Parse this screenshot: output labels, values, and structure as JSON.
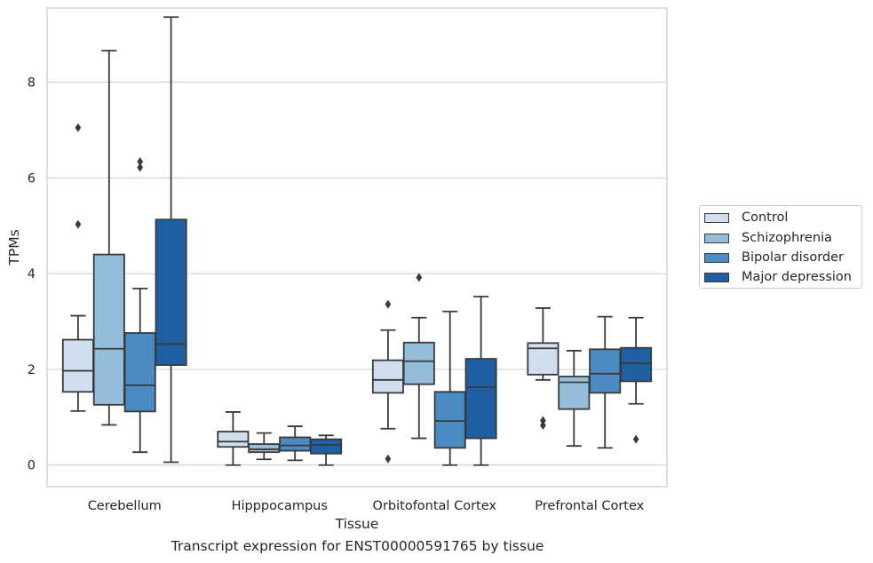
{
  "caption": "Transcript expression for ENST00000591765 by tissue",
  "colors": {
    "control": "#cfdff0",
    "schizophrenia": "#93bdda",
    "bipolar": "#4a8bc2",
    "depression": "#1f5fa3",
    "grid": "#cccccc",
    "line": "#3a3a3a"
  },
  "chart_data": {
    "type": "box",
    "xlabel": "Tissue",
    "ylabel": "TPMs",
    "ylim": [
      -0.45,
      9.55
    ],
    "yticks": [
      0,
      2,
      4,
      6,
      8
    ],
    "grid": "horizontal",
    "legend_position": "right",
    "categories": [
      "Cerebellum",
      "Hipppocampus",
      "Orbitofontal Cortex",
      "Prefrontal Cortex"
    ],
    "series": [
      {
        "name": "Control",
        "boxes": [
          {
            "whislo": 1.13,
            "q1": 1.53,
            "med": 1.97,
            "q3": 2.62,
            "whishi": 3.12,
            "fliers": [
              7.05,
              5.03
            ]
          },
          {
            "whislo": 0.0,
            "q1": 0.38,
            "med": 0.49,
            "q3": 0.7,
            "whishi": 1.11,
            "fliers": []
          },
          {
            "whislo": 0.76,
            "q1": 1.51,
            "med": 1.78,
            "q3": 2.19,
            "whishi": 2.82,
            "fliers": [
              3.36,
              0.13
            ]
          },
          {
            "whislo": 1.78,
            "q1": 1.89,
            "med": 2.44,
            "q3": 2.55,
            "whishi": 3.28,
            "fliers": [
              0.93,
              0.83
            ]
          }
        ]
      },
      {
        "name": "Schizophrenia",
        "boxes": [
          {
            "whislo": 0.84,
            "q1": 1.26,
            "med": 2.43,
            "q3": 4.4,
            "whishi": 8.66,
            "fliers": []
          },
          {
            "whislo": 0.12,
            "q1": 0.27,
            "med": 0.33,
            "q3": 0.44,
            "whishi": 0.67,
            "fliers": []
          },
          {
            "whislo": 0.56,
            "q1": 1.69,
            "med": 2.17,
            "q3": 2.56,
            "whishi": 3.08,
            "fliers": [
              3.92
            ]
          },
          {
            "whislo": 0.4,
            "q1": 1.17,
            "med": 1.73,
            "q3": 1.85,
            "whishi": 2.39,
            "fliers": []
          }
        ]
      },
      {
        "name": "Bipolar disorder",
        "boxes": [
          {
            "whislo": 0.27,
            "q1": 1.12,
            "med": 1.67,
            "q3": 2.76,
            "whishi": 3.69,
            "fliers": [
              6.34,
              6.22
            ]
          },
          {
            "whislo": 0.1,
            "q1": 0.3,
            "med": 0.41,
            "q3": 0.58,
            "whishi": 0.81,
            "fliers": []
          },
          {
            "whislo": 0.0,
            "q1": 0.36,
            "med": 0.92,
            "q3": 1.53,
            "whishi": 3.21,
            "fliers": []
          },
          {
            "whislo": 0.36,
            "q1": 1.51,
            "med": 1.91,
            "q3": 2.42,
            "whishi": 3.1,
            "fliers": []
          }
        ]
      },
      {
        "name": "Major depression",
        "boxes": [
          {
            "whislo": 0.06,
            "q1": 2.09,
            "med": 2.53,
            "q3": 5.13,
            "whishi": 9.36,
            "fliers": []
          },
          {
            "whislo": 0.0,
            "q1": 0.24,
            "med": 0.42,
            "q3": 0.54,
            "whishi": 0.62,
            "fliers": []
          },
          {
            "whislo": 0.0,
            "q1": 0.56,
            "med": 1.63,
            "q3": 2.22,
            "whishi": 3.52,
            "fliers": []
          },
          {
            "whislo": 1.28,
            "q1": 1.75,
            "med": 2.13,
            "q3": 2.45,
            "whishi": 3.08,
            "fliers": [
              0.54
            ]
          }
        ]
      }
    ]
  }
}
